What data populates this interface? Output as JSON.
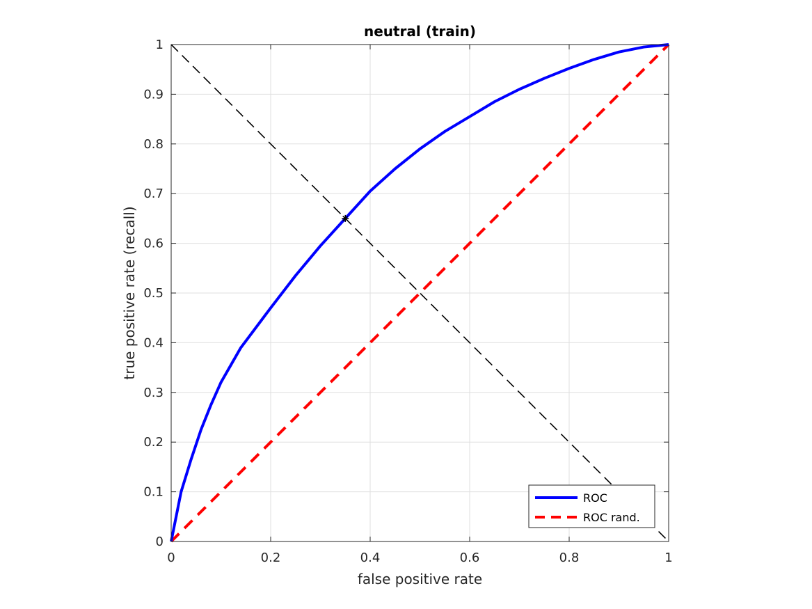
{
  "chart_data": {
    "type": "line",
    "title": "neutral (train)",
    "xlabel": "false positive rate",
    "ylabel": "true positive rate (recall)",
    "xlim": [
      0,
      1
    ],
    "ylim": [
      0,
      1
    ],
    "grid": true,
    "x_ticks": [
      "0",
      "0.2",
      "0.4",
      "0.6",
      "0.8",
      "1"
    ],
    "y_ticks": [
      "0",
      "0.1",
      "0.2",
      "0.3",
      "0.4",
      "0.5",
      "0.6",
      "0.7",
      "0.8",
      "0.9",
      "1"
    ],
    "legend_position": "bottom-right",
    "series": [
      {
        "name": "ROC",
        "color": "#0000ff",
        "style": "solid",
        "x": [
          0,
          0.01,
          0.02,
          0.04,
          0.06,
          0.08,
          0.1,
          0.14,
          0.2,
          0.25,
          0.3,
          0.35,
          0.4,
          0.45,
          0.5,
          0.55,
          0.6,
          0.65,
          0.7,
          0.75,
          0.8,
          0.85,
          0.9,
          0.95,
          1.0
        ],
        "y": [
          0,
          0.05,
          0.1,
          0.165,
          0.225,
          0.275,
          0.32,
          0.39,
          0.47,
          0.535,
          0.595,
          0.65,
          0.705,
          0.75,
          0.79,
          0.825,
          0.855,
          0.885,
          0.91,
          0.932,
          0.952,
          0.97,
          0.985,
          0.995,
          1.0
        ]
      },
      {
        "name": "ROC rand.",
        "color": "#ff0000",
        "style": "dashed",
        "x": [
          0,
          1
        ],
        "y": [
          0,
          1
        ]
      },
      {
        "color": "#000000",
        "style": "dashed-thin",
        "x": [
          0,
          1
        ],
        "y": [
          1,
          0
        ]
      }
    ],
    "marker": {
      "x": 0.35,
      "y": 0.65,
      "symbol": "*",
      "color": "#000000"
    }
  }
}
